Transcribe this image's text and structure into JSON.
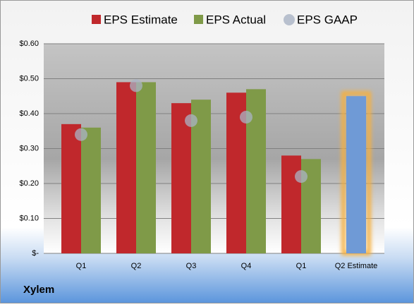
{
  "chart_data": {
    "type": "bar",
    "categories": [
      "Q1",
      "Q2",
      "Q3",
      "Q4",
      "Q1",
      "Q2 Estimate"
    ],
    "series": [
      {
        "name": "EPS Estimate",
        "color": "#c0282c",
        "values": [
          0.37,
          0.49,
          0.43,
          0.46,
          0.28,
          0.45
        ]
      },
      {
        "name": "EPS Actual",
        "color": "#7f9a48",
        "values": [
          0.36,
          0.49,
          0.44,
          0.47,
          0.27,
          null
        ]
      },
      {
        "name": "EPS GAAP",
        "color": "#a9b3c4",
        "values": [
          0.34,
          0.48,
          0.38,
          0.39,
          0.22,
          null
        ]
      }
    ],
    "highlight_color": "#6f9ad6",
    "highlight_glow": "#f5b041",
    "ylim": [
      0,
      0.6
    ],
    "yticks": [
      {
        "value": 0,
        "label": "$-"
      },
      {
        "value": 0.1,
        "label": "$0.10"
      },
      {
        "value": 0.2,
        "label": "$0.20"
      },
      {
        "value": 0.3,
        "label": "$0.30"
      },
      {
        "value": 0.4,
        "label": "$0.40"
      },
      {
        "value": 0.5,
        "label": "$0.50"
      },
      {
        "value": 0.6,
        "label": "$0.60"
      }
    ],
    "grid": true,
    "footer": "Xylem"
  }
}
